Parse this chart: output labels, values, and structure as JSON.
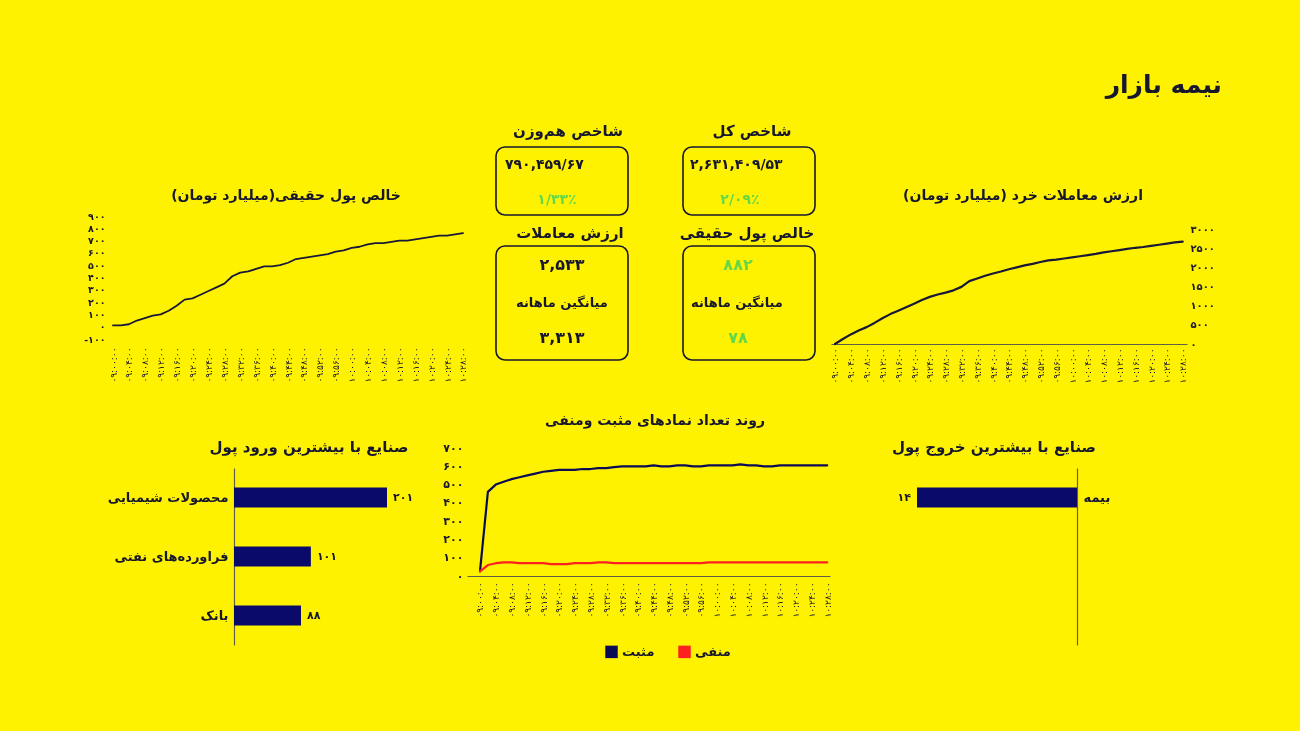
{
  "chart_data": [
    {
      "type": "other",
      "title": "نیمه بازار"
    },
    {
      "type": "line",
      "title": "ارزش معاملات خرد (میلیارد تومان)",
      "categories": [
        "۰۹:۰۰:۰۰",
        null,
        "۰۹:۰۴:۰۰",
        null,
        "۰۹:۰۸:۰۰",
        null,
        "۰۹:۱۲:۰۰",
        null,
        "۰۹:۱۶:۰۰",
        null,
        "۰۹:۲۰:۰۰",
        null,
        "۰۹:۲۴:۰۰",
        null,
        "۰۹:۲۸:۰۰",
        null,
        "۰۹:۳۲:۰۰",
        null,
        "۰۹:۳۶:۰۰",
        null,
        "۰۹:۴۰:۰۰",
        null,
        "۰۹:۴۴:۰۰",
        null,
        "۰۹:۴۸:۰۰",
        null,
        "۰۹:۵۲:۰۰",
        null,
        "۰۹:۵۶:۰۰",
        null,
        "۱۰:۰۰:۰۰",
        null,
        "۱۰:۰۴:۰۰",
        null,
        "۱۰:۰۸:۰۰",
        null,
        "۱۰:۱۲:۰۰",
        null,
        "۱۰:۱۶:۰۰",
        null,
        "۱۰:۲۰:۰۰",
        null,
        "۱۰:۲۴:۰۰",
        null,
        "۱۰:۲۸:۰۰"
      ],
      "series": [
        {
          "color": "#17173a",
          "values": [
            0,
            130,
            250,
            350,
            440,
            550,
            670,
            780,
            870,
            960,
            1050,
            1150,
            1230,
            1290,
            1340,
            1400,
            1490,
            1640,
            1710,
            1780,
            1840,
            1890,
            1950,
            2000,
            2050,
            2090,
            2140,
            2180,
            2200,
            2230,
            2260,
            2290,
            2320,
            2350,
            2390,
            2420,
            2450,
            2480,
            2510,
            2530,
            2560,
            2590,
            2620,
            2650,
            2670
          ]
        }
      ],
      "ylim": [
        0,
        3000
      ],
      "yticks": [
        {
          "value": 0,
          "label": "۰"
        },
        {
          "value": 500,
          "label": "۵۰۰"
        },
        {
          "value": 1000,
          "label": "۱۰۰۰"
        },
        {
          "value": 1500,
          "label": "۱۵۰۰"
        },
        {
          "value": 2000,
          "label": "۲۰۰۰"
        },
        {
          "value": 2500,
          "label": "۲۵۰۰"
        },
        {
          "value": 3000,
          "label": "۳۰۰۰"
        }
      ]
    },
    {
      "type": "other",
      "title": "شاخص کل",
      "annotations": [
        "۲,۶۳۱,۴۰۹/۵۳",
        "۲/۰۹٪"
      ]
    },
    {
      "type": "other",
      "title": "شاخص هم‌وزن",
      "annotations": [
        "۷۹۰,۴۵۹/۶۷",
        "۱/۳۳٪"
      ]
    },
    {
      "type": "other",
      "title": "خالص پول حقیقی",
      "annotations": [
        "۸۸۲",
        "میانگین ماهانه",
        "۷۸"
      ]
    },
    {
      "type": "other",
      "title": "ارزش معاملات",
      "annotations": [
        "۲,۵۳۳",
        "میانگین ماهانه",
        "۳,۳۱۳"
      ]
    },
    {
      "type": "line",
      "title": "خالص پول حقیقی(میلیارد تومان)",
      "categories": [
        "۰۹:۰۰:۰۰",
        null,
        "۰۹:۰۴:۰۰",
        null,
        "۰۹:۰۸:۰۰",
        null,
        "۰۹:۱۲:۰۰",
        null,
        "۰۹:۱۶:۰۰",
        null,
        "۰۹:۲۰:۰۰",
        null,
        "۰۹:۲۴:۰۰",
        null,
        "۰۹:۲۸:۰۰",
        null,
        "۰۹:۳۲:۰۰",
        null,
        "۰۹:۳۶:۰۰",
        null,
        "۰۹:۴۰:۰۰",
        null,
        "۰۹:۴۴:۰۰",
        null,
        "۰۹:۴۸:۰۰",
        null,
        "۰۹:۵۲:۰۰",
        null,
        "۰۹:۵۶:۰۰",
        null,
        "۱۰:۰۰:۰۰",
        null,
        "۱۰:۰۴:۰۰",
        null,
        "۱۰:۰۸:۰۰",
        null,
        "۱۰:۱۲:۰۰",
        null,
        "۱۰:۱۶:۰۰",
        null,
        "۱۰:۲۰:۰۰",
        null,
        "۱۰:۲۴:۰۰",
        null,
        "۱۰:۲۸:۰۰"
      ],
      "series": [
        {
          "color": "#17173a",
          "values": [
            10,
            10,
            20,
            50,
            70,
            90,
            100,
            130,
            170,
            220,
            230,
            260,
            290,
            320,
            350,
            410,
            440,
            450,
            470,
            490,
            490,
            500,
            520,
            550,
            560,
            570,
            580,
            590,
            610,
            620,
            640,
            650,
            670,
            680,
            680,
            690,
            700,
            700,
            710,
            720,
            730,
            740,
            740,
            750,
            760
          ]
        }
      ],
      "ylim": [
        -100,
        900
      ],
      "yticks": [
        {
          "value": -100,
          "label": "-۱۰۰"
        },
        {
          "value": 0,
          "label": "۰"
        },
        {
          "value": 100,
          "label": "۱۰۰"
        },
        {
          "value": 200,
          "label": "۲۰۰"
        },
        {
          "value": 300,
          "label": "۳۰۰"
        },
        {
          "value": 400,
          "label": "۴۰۰"
        },
        {
          "value": 500,
          "label": "۵۰۰"
        },
        {
          "value": 600,
          "label": "۶۰۰"
        },
        {
          "value": 700,
          "label": "۷۰۰"
        },
        {
          "value": 800,
          "label": "۸۰۰"
        },
        {
          "value": 900,
          "label": "۹۰۰"
        }
      ]
    },
    {
      "type": "bar",
      "orientation": "horizontal",
      "title": "صنایع با بیشترین خروج پول",
      "categories": [
        "بیمه",
        null,
        null
      ],
      "values": [
        14,
        null,
        null
      ],
      "color": "#0a0a6b",
      "value_labels": [
        "۱۴",
        null,
        null
      ],
      "tick_labels": "y"
    },
    {
      "type": "line",
      "title": "روند تعداد نمادهای مثبت ومنفی",
      "categories": [
        "۰۹:۰۰:۰۰",
        null,
        "۰۹:۰۴:۰۰",
        null,
        "۰۹:۰۸:۰۰",
        null,
        "۰۹:۱۲:۰۰",
        null,
        "۰۹:۱۶:۰۰",
        null,
        "۰۹:۲۰:۰۰",
        null,
        "۰۹:۲۴:۰۰",
        null,
        "۰۹:۲۸:۰۰",
        null,
        "۰۹:۳۲:۰۰",
        null,
        "۰۹:۳۶:۰۰",
        null,
        "۰۹:۴۰:۰۰",
        null,
        "۰۹:۴۴:۰۰",
        null,
        "۰۹:۴۸:۰۰",
        null,
        "۰۹:۵۲:۰۰",
        null,
        "۰۹:۵۶:۰۰",
        null,
        "۱۰:۰۰:۰۰",
        null,
        "۱۰:۰۴:۰۰",
        null,
        "۱۰:۰۸:۰۰",
        null,
        "۱۰:۱۲:۰۰",
        null,
        "۱۰:۱۶:۰۰",
        null,
        "۱۰:۲۰:۰۰",
        null,
        "۱۰:۲۴:۰۰",
        null,
        "۱۰:۲۸:۰۰"
      ],
      "series": [
        {
          "name": "مثبت",
          "color": "#0a0a55",
          "values": [
            25,
            460,
            500,
            515,
            530,
            540,
            550,
            560,
            570,
            575,
            580,
            580,
            580,
            585,
            585,
            590,
            590,
            595,
            600,
            600,
            600,
            600,
            605,
            600,
            600,
            605,
            605,
            600,
            600,
            605,
            605,
            605,
            605,
            610,
            605,
            605,
            600,
            600,
            605,
            605,
            605,
            605,
            605,
            605,
            605
          ]
        },
        {
          "name": "منفی",
          "color": "#ff2020",
          "values": [
            25,
            60,
            70,
            75,
            75,
            70,
            70,
            70,
            70,
            65,
            65,
            65,
            70,
            70,
            70,
            75,
            75,
            70,
            70,
            70,
            70,
            70,
            70,
            70,
            70,
            70,
            70,
            70,
            70,
            75,
            75,
            75,
            75,
            75,
            75,
            75,
            75,
            75,
            75,
            75,
            75,
            75,
            75,
            75,
            75
          ]
        }
      ],
      "ylim": [
        0,
        700
      ],
      "yticks": [
        {
          "value": 0,
          "label": "۰"
        },
        {
          "value": 100,
          "label": "۱۰۰"
        },
        {
          "value": 200,
          "label": "۲۰۰"
        },
        {
          "value": 300,
          "label": "۳۰۰"
        },
        {
          "value": 400,
          "label": "۴۰۰"
        },
        {
          "value": 500,
          "label": "۵۰۰"
        },
        {
          "value": 600,
          "label": "۶۰۰"
        },
        {
          "value": 700,
          "label": "۷۰۰"
        }
      ],
      "legend": "bottom"
    },
    {
      "type": "bar",
      "orientation": "horizontal",
      "title": "صنایع با بیشترین ورود پول",
      "categories": [
        "محصولات شیمیایی",
        "فراورده‌های نفتی",
        "بانک"
      ],
      "values": [
        201,
        101,
        88
      ],
      "color": "#0a0a6b",
      "value_labels": [
        "۲۰۱",
        "۱۰۱",
        "۸۸"
      ],
      "tick_labels": "y"
    }
  ]
}
